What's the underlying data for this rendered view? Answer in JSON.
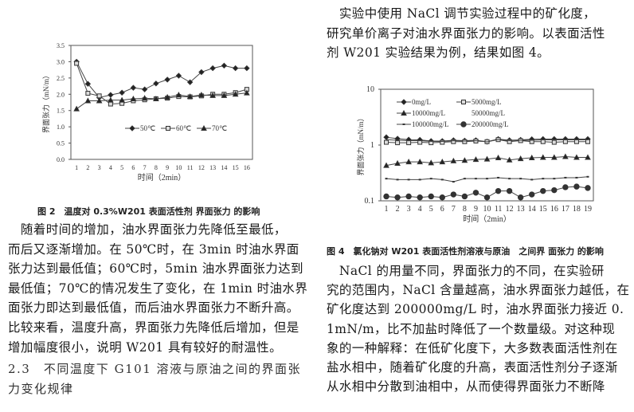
{
  "left_column": {
    "figure2_caption": "图 2　温度对 0.3%W201 表面活性剂 界面张力 的影响",
    "paragraph_lines": [
      "　随着时间的增加，油水界面张力先降低至最低，",
      "而后又逐渐增加。在 50℃时，在 3min 时油水界面",
      "张力达到最低值；60℃时，5min 油水界面张力达到",
      "最低值；70℃的情况发生了变化，在 1min 时油水界",
      "面张力即达到最低值，而后油水界面张力不断升高。",
      "比较来看，温度升高，界面张力先降低后增加，但是",
      "增加幅度很小，说明 W201 具有较好的耐温性。"
    ],
    "section_heading_lines": [
      "2.3　不同温度下 G101 溶液与原油之间的界面张",
      "力变化规律"
    ]
  },
  "right_column": {
    "intro_lines": [
      "　实验中使用 NaCl 调节实验过程中的矿化度，",
      "研究单价离子对油水界面张力的影响。以表面活性",
      "剂 W201 实验结果为例，结果如图 4。"
    ],
    "figure4_caption": "图 4　氯化钠对 W201 表面活性剂溶液与原油　之间界 面张力 的影响",
    "paragraph_lines": [
      "　NaCl 的用量不同，界面张力的不同，在实验研",
      "究的范围内，NaCl 含量越高，油水界面张力越低，在",
      "矿化度达到 200000mg/L 时，油水界面张力接近 0.",
      "1mN/m，比不加盐时降低了一个数量级。对这种现",
      "象的一种解释：在低矿化度下，大多数表面活性剂在",
      "盐水相中，随着矿化度的升高，表面活性剂分子逐渐",
      "从水相中分散到油相中，从而使得界面张力不断降"
    ]
  },
  "chart_data": [
    {
      "type": "line",
      "xlabel": "时间（2min）",
      "ylabel": "界面张力（mN/m）",
      "categories": [
        "1",
        "2",
        "3",
        "4",
        "5",
        "6",
        "7",
        "8",
        "9",
        "10",
        "11",
        "12",
        "13",
        "14",
        "15",
        "16"
      ],
      "ylim": [
        0.0,
        3.5
      ],
      "yticks": [
        "0.0",
        "0.5",
        "1.0",
        "1.5",
        "2.0",
        "2.5",
        "3.0",
        "3.5"
      ],
      "grid": false,
      "legend": "center",
      "series": [
        {
          "name": "50℃",
          "marker": "diamond",
          "values": [
            3.0,
            2.32,
            1.9,
            1.98,
            2.05,
            2.2,
            2.15,
            2.33,
            2.45,
            2.57,
            2.37,
            2.68,
            2.8,
            2.88,
            2.8,
            2.8
          ]
        },
        {
          "name": "60℃",
          "marker": "square",
          "values": [
            2.95,
            2.03,
            1.95,
            1.7,
            1.72,
            1.8,
            1.83,
            1.86,
            1.88,
            1.93,
            1.92,
            1.95,
            2.0,
            2.0,
            2.05,
            2.15
          ]
        },
        {
          "name": "70℃",
          "marker": "triangle",
          "values": [
            1.55,
            1.8,
            1.8,
            1.82,
            1.82,
            1.86,
            1.88,
            1.86,
            1.91,
            1.98,
            1.93,
            1.98,
            1.96,
            1.96,
            2.0,
            2.04
          ]
        }
      ]
    },
    {
      "type": "line",
      "xlabel": "时间（2min）",
      "ylabel": "界面张力（mN/m）",
      "categories": [
        "1",
        "2",
        "3",
        "4",
        "5",
        "6",
        "7",
        "8",
        "9",
        "10",
        "11",
        "12",
        "13",
        "14",
        "15",
        "16",
        "17",
        "18",
        "19"
      ],
      "ylim": [
        0.1,
        10
      ],
      "yscale": "log",
      "yticks": [
        "0.1",
        "1",
        "10"
      ],
      "grid": false,
      "legend": "top",
      "series": [
        {
          "name": "0mg/L",
          "marker": "diamond",
          "values": [
            1.38,
            1.3,
            1.25,
            1.24,
            1.18,
            1.18,
            1.22,
            1.2,
            1.22,
            1.15,
            1.28,
            1.22,
            1.24,
            1.27,
            1.28,
            1.28,
            1.28,
            1.28,
            1.28
          ]
        },
        {
          "name": "5000mg/L",
          "marker": "square",
          "values": [
            1.12,
            1.1,
            1.1,
            1.12,
            1.1,
            1.12,
            1.15,
            1.15,
            1.18,
            1.15,
            1.25,
            1.15,
            1.2,
            1.15,
            1.15,
            1.12,
            1.15,
            1.15,
            1.15
          ]
        },
        {
          "name": "10000mg/L",
          "marker": "triangle",
          "values": [
            0.43,
            0.47,
            0.5,
            0.5,
            0.48,
            0.5,
            0.52,
            0.53,
            0.55,
            0.56,
            0.59,
            0.54,
            0.57,
            0.59,
            0.6,
            0.6,
            0.62,
            0.6,
            0.6
          ]
        },
        {
          "name": "50000mg/L",
          "marker": "none",
          "values": [
            1.25,
            1.22,
            1.2,
            1.2,
            1.16,
            1.16,
            1.2,
            1.18,
            1.2,
            1.14,
            1.26,
            1.2,
            1.22,
            1.22,
            1.24,
            1.24,
            1.24,
            1.24,
            1.24
          ]
        },
        {
          "name": "100000mg/L",
          "marker": "dash",
          "values": [
            0.25,
            0.24,
            0.24,
            0.24,
            0.25,
            0.24,
            0.22,
            0.25,
            0.25,
            0.25,
            0.26,
            0.25,
            0.25,
            0.24,
            0.25,
            0.25,
            0.26,
            0.26,
            0.27
          ]
        },
        {
          "name": "200000mg/L",
          "marker": "circle",
          "values": [
            0.12,
            0.115,
            0.12,
            0.115,
            0.12,
            0.115,
            0.13,
            0.12,
            0.14,
            0.115,
            0.15,
            0.15,
            0.115,
            0.13,
            0.15,
            0.155,
            0.175,
            0.18,
            0.17
          ]
        }
      ]
    }
  ]
}
